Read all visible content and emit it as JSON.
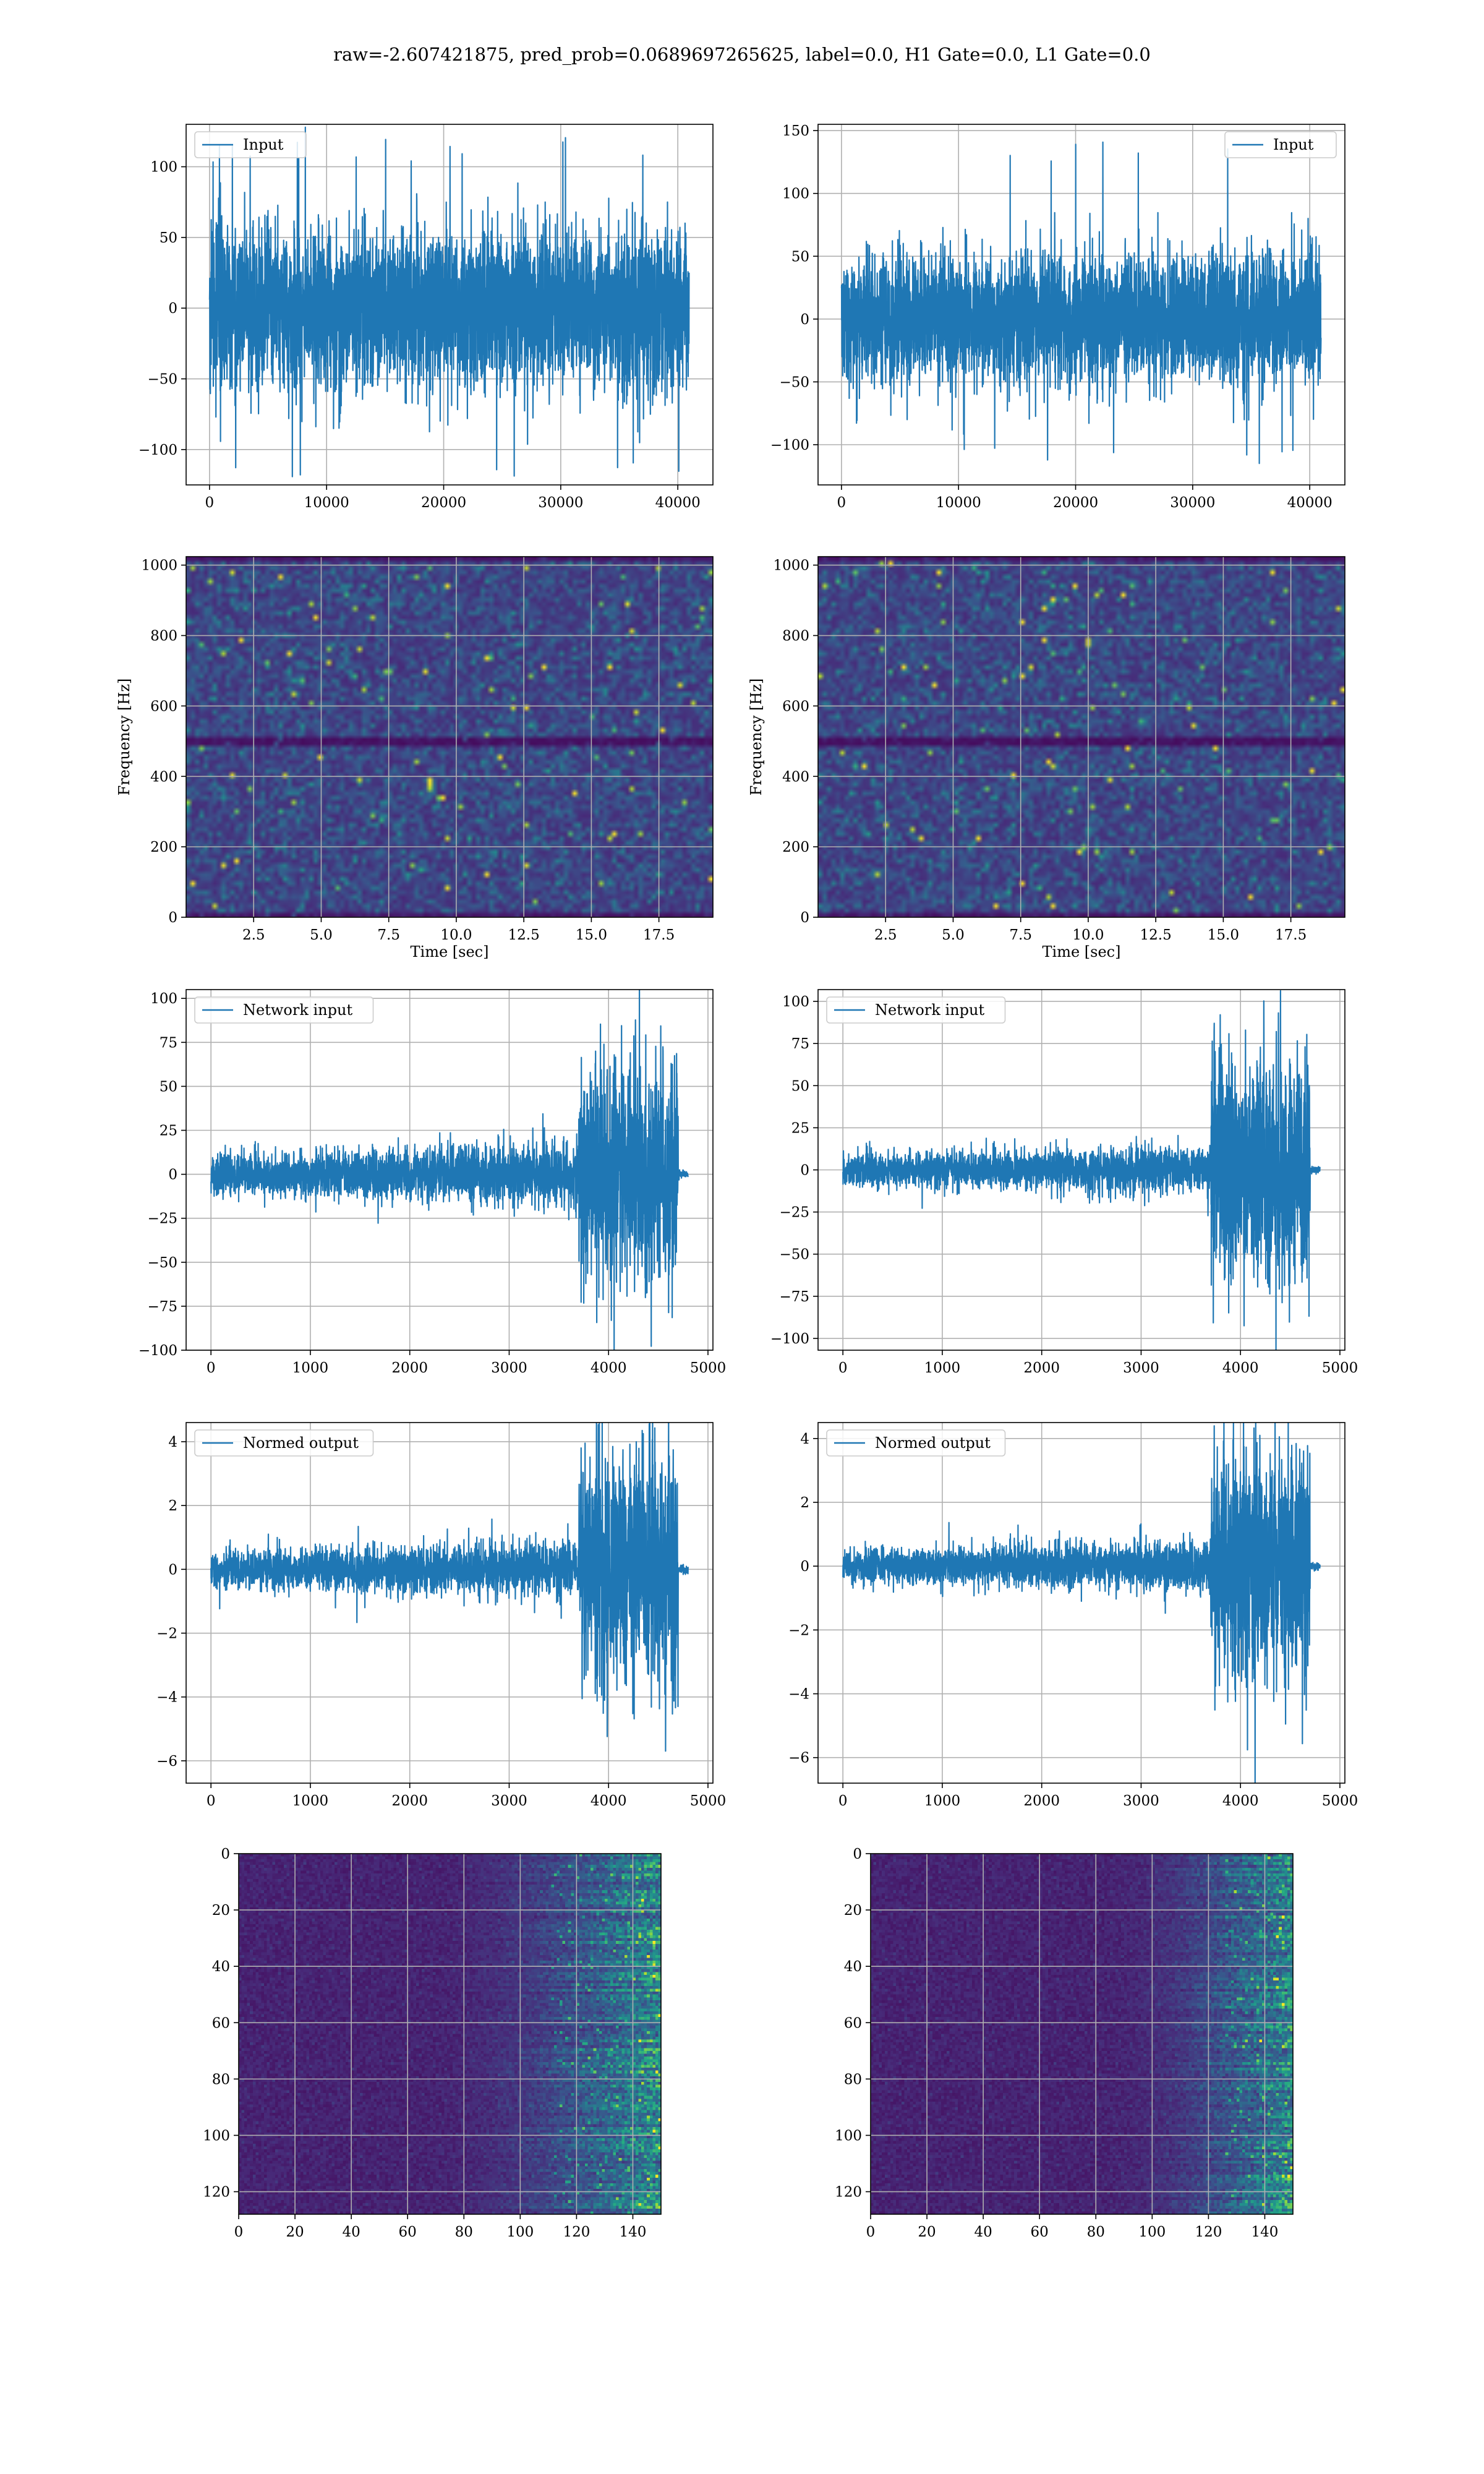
{
  "figure": {
    "suptitle": "raw=-2.607421875, pred_prob=0.0689697265625, label=0.0, H1 Gate=0.0, L1 Gate=0.0"
  },
  "colors": {
    "series": "#1f77b4",
    "grid": "#b0b0b0",
    "viridis_low": "#440154",
    "viridis_high": "#fde725"
  },
  "chart_data": [
    {
      "id": "input_left",
      "type": "line",
      "legend": "Input",
      "legend_loc": "upper left",
      "xlim": [
        -2000,
        43000
      ],
      "ylim": [
        -125,
        130
      ],
      "xticks": [
        0,
        10000,
        20000,
        30000,
        40000
      ],
      "yticks": [
        -100,
        -50,
        0,
        50,
        100
      ],
      "x_range": [
        0,
        40960
      ],
      "envelope": [
        -70,
        70
      ],
      "peaks": [
        -122,
        121
      ],
      "grid": true
    },
    {
      "id": "input_right",
      "type": "line",
      "legend": "Input",
      "legend_loc": "upper right",
      "xlim": [
        -2000,
        43000
      ],
      "ylim": [
        -132,
        155
      ],
      "xticks": [
        0,
        10000,
        20000,
        30000,
        40000
      ],
      "yticks": [
        -100,
        -50,
        0,
        50,
        100,
        150
      ],
      "x_range": [
        0,
        40960
      ],
      "envelope": [
        -65,
        65
      ],
      "peaks": [
        -120,
        144
      ],
      "grid": true
    },
    {
      "id": "spec_left",
      "type": "heatmap",
      "xlabel": "Time [sec]",
      "ylabel": "Frequency [Hz]",
      "xlim": [
        0,
        19.5
      ],
      "ylim": [
        0,
        1024
      ],
      "xticks": [
        2.5,
        5.0,
        7.5,
        10.0,
        12.5,
        15.0,
        17.5
      ],
      "yticks": [
        0,
        200,
        400,
        600,
        800,
        1000
      ],
      "xtick_labels": [
        "2.5",
        "5.0",
        "7.5",
        "10.0",
        "12.5",
        "15.0",
        "17.5"
      ],
      "dark_band_hz": 500,
      "grid": true
    },
    {
      "id": "spec_right",
      "type": "heatmap",
      "xlabel": "Time [sec]",
      "ylabel": "Frequency [Hz]",
      "xlim": [
        0,
        19.5
      ],
      "ylim": [
        0,
        1024
      ],
      "xticks": [
        2.5,
        5.0,
        7.5,
        10.0,
        12.5,
        15.0,
        17.5
      ],
      "yticks": [
        0,
        200,
        400,
        600,
        800,
        1000
      ],
      "xtick_labels": [
        "2.5",
        "5.0",
        "7.5",
        "10.0",
        "12.5",
        "15.0",
        "17.5"
      ],
      "dark_band_hz": 500,
      "grid": true
    },
    {
      "id": "netinput_left",
      "type": "line",
      "legend": "Network input",
      "legend_loc": "upper left",
      "xlim": [
        -250,
        5050
      ],
      "ylim": [
        -100,
        105
      ],
      "xticks": [
        0,
        1000,
        2000,
        3000,
        4000,
        5000
      ],
      "yticks": [
        -100,
        -75,
        -50,
        -25,
        0,
        25,
        50,
        75,
        100
      ],
      "x_range": [
        0,
        4800
      ],
      "quiet_amp": 22,
      "burst_start": 3700,
      "burst_end": 4700,
      "burst_amp": 85,
      "grid": true
    },
    {
      "id": "netinput_right",
      "type": "line",
      "legend": "Network input",
      "legend_loc": "upper left",
      "xlim": [
        -250,
        5050
      ],
      "ylim": [
        -107,
        107
      ],
      "xticks": [
        0,
        1000,
        2000,
        3000,
        4000,
        5000
      ],
      "yticks": [
        -100,
        -75,
        -50,
        -25,
        0,
        25,
        50,
        75,
        100
      ],
      "x_range": [
        0,
        4800
      ],
      "quiet_amp": 18,
      "burst_start": 3700,
      "burst_end": 4700,
      "burst_amp": 92,
      "grid": true
    },
    {
      "id": "normed_left",
      "type": "line",
      "legend": "Normed output",
      "legend_loc": "upper left",
      "xlim": [
        -250,
        5050
      ],
      "ylim": [
        -6.7,
        4.6
      ],
      "xticks": [
        0,
        1000,
        2000,
        3000,
        4000,
        5000
      ],
      "yticks": [
        -6,
        -4,
        -2,
        0,
        2,
        4
      ],
      "x_range": [
        0,
        4800
      ],
      "quiet_amp": 1.1,
      "burst_start": 3700,
      "burst_end": 4700,
      "burst_amp": 4.6,
      "grid": true
    },
    {
      "id": "normed_right",
      "type": "line",
      "legend": "Normed output",
      "legend_loc": "upper left",
      "xlim": [
        -250,
        5050
      ],
      "ylim": [
        -6.8,
        4.5
      ],
      "xticks": [
        0,
        1000,
        2000,
        3000,
        4000,
        5000
      ],
      "yticks": [
        -6,
        -4,
        -2,
        0,
        2,
        4
      ],
      "x_range": [
        0,
        4800
      ],
      "quiet_amp": 1.0,
      "burst_start": 3700,
      "burst_end": 4700,
      "burst_amp": 4.6,
      "grid": true
    },
    {
      "id": "feat_left",
      "type": "heatmap",
      "xlim": [
        0,
        150
      ],
      "ylim": [
        128,
        0
      ],
      "xticks": [
        0,
        20,
        40,
        60,
        80,
        100,
        120,
        140
      ],
      "yticks": [
        0,
        20,
        40,
        60,
        80,
        100,
        120
      ],
      "activity_start": 95,
      "grid": true
    },
    {
      "id": "feat_right",
      "type": "heatmap",
      "xlim": [
        0,
        150
      ],
      "ylim": [
        128,
        0
      ],
      "xticks": [
        0,
        20,
        40,
        60,
        80,
        100,
        120,
        140
      ],
      "yticks": [
        0,
        20,
        40,
        60,
        80,
        100,
        120
      ],
      "activity_start": 110,
      "grid": true
    }
  ]
}
